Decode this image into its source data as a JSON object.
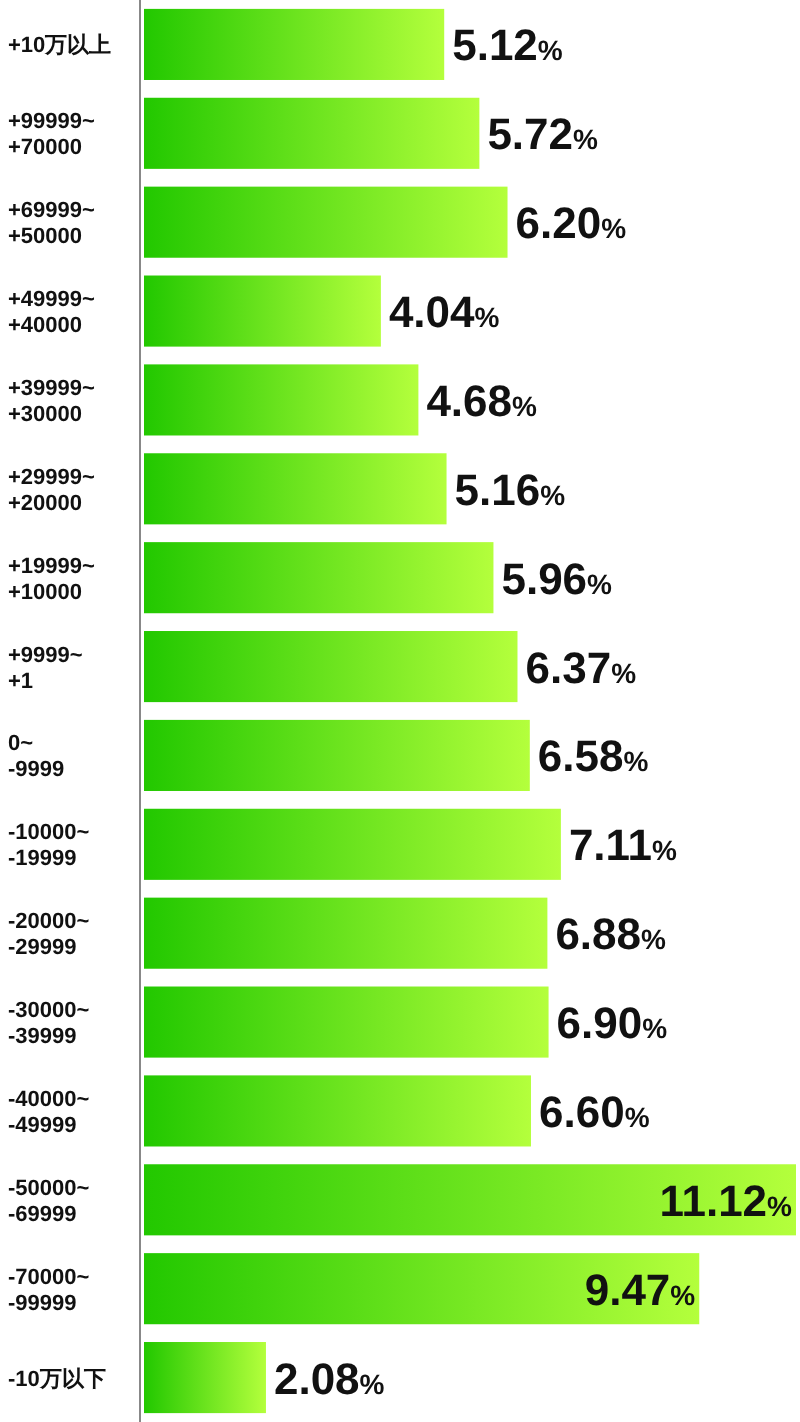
{
  "chart_data": {
    "type": "bar",
    "orientation": "horizontal",
    "categories": [
      "+10万以上",
      "+99999~\n+70000",
      "+69999~\n+50000",
      "+49999~\n+40000",
      "+39999~\n+30000",
      "+29999~\n+20000",
      "+19999~\n+10000",
      "+9999~\n+1",
      "0~\n-9999",
      "-10000~\n-19999",
      "-20000~\n-29999",
      "-30000~\n-39999",
      "-40000~\n-49999",
      "-50000~\n-69999",
      "-70000~\n-99999",
      "-10万以下"
    ],
    "values": [
      5.12,
      5.72,
      6.2,
      4.04,
      4.68,
      5.16,
      5.96,
      6.37,
      6.58,
      7.11,
      6.88,
      6.9,
      6.6,
      11.12,
      9.47,
      2.08
    ],
    "value_labels": [
      "5.12%",
      "5.72%",
      "6.20%",
      "4.04%",
      "4.68%",
      "5.16%",
      "5.96%",
      "6.37%",
      "6.58%",
      "7.11%",
      "6.88%",
      "6.90%",
      "6.60%",
      "11.12%",
      "9.47%",
      "2.08%"
    ],
    "color": "#22c800"
  }
}
